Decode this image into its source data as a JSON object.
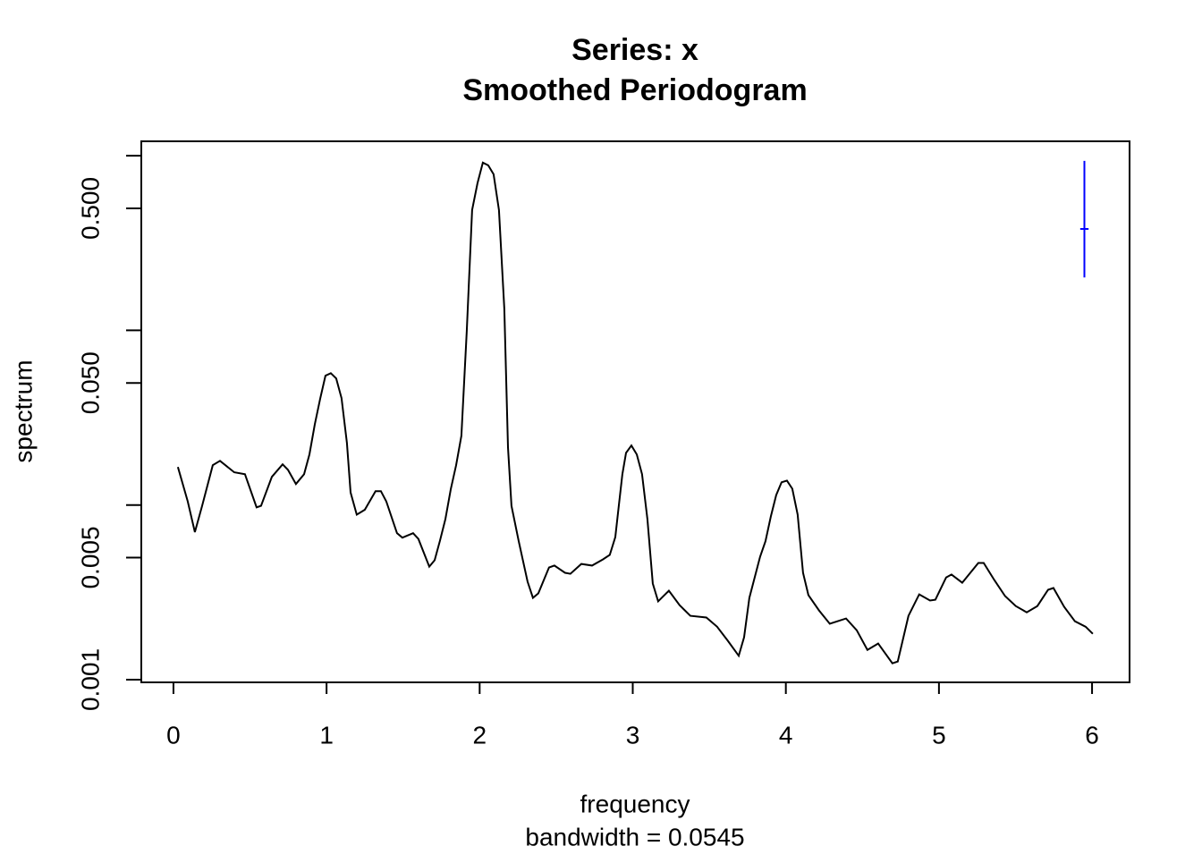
{
  "chart_data": {
    "type": "line",
    "title": "Series: x",
    "subtitle": "Smoothed Periodogram",
    "x_label": "frequency",
    "x_sublabel": "bandwidth = 0.0545",
    "y_label": "spectrum",
    "log_y": true,
    "color": "#000000",
    "xlim": [
      -0.21,
      6.245
    ],
    "xticks": [
      0,
      1,
      2,
      3,
      4,
      5,
      6
    ],
    "ylim": [
      0.000965,
      1.21
    ],
    "yticks": [
      {
        "value": 0.001,
        "label": "0.001"
      },
      0.005,
      {
        "value": 0.05,
        "label": "0.050"
      },
      {
        "value": 0.5,
        "label": "0.500"
      }
    ],
    "yminorticks": [
      0.01,
      0.1,
      1
    ],
    "x": [
      0.029,
      0.093,
      0.14,
      0.187,
      0.257,
      0.304,
      0.397,
      0.467,
      0.543,
      0.572,
      0.643,
      0.713,
      0.748,
      0.8,
      0.853,
      0.888,
      0.923,
      0.958,
      0.993,
      1.028,
      1.063,
      1.098,
      1.133,
      1.157,
      1.197,
      1.25,
      1.32,
      1.355,
      1.39,
      1.46,
      1.495,
      1.565,
      1.6,
      1.671,
      1.706,
      1.741,
      1.776,
      1.811,
      1.846,
      1.881,
      1.916,
      1.951,
      1.986,
      2.021,
      2.056,
      2.091,
      2.126,
      2.161,
      2.185,
      2.208,
      2.255,
      2.313,
      2.348,
      2.383,
      2.453,
      2.488,
      2.558,
      2.593,
      2.664,
      2.734,
      2.804,
      2.85,
      2.886,
      2.909,
      2.932,
      2.956,
      2.991,
      3.026,
      3.061,
      3.096,
      3.131,
      3.166,
      3.236,
      3.306,
      3.376,
      3.481,
      3.551,
      3.621,
      3.692,
      3.727,
      3.762,
      3.832,
      3.867,
      3.902,
      3.937,
      3.972,
      4.007,
      4.042,
      4.077,
      4.112,
      4.147,
      4.217,
      4.287,
      4.393,
      4.463,
      4.533,
      4.603,
      4.696,
      4.731,
      4.801,
      4.871,
      4.942,
      4.977,
      5.047,
      5.082,
      5.152,
      5.257,
      5.292,
      5.362,
      5.432,
      5.502,
      5.573,
      5.643,
      5.713,
      5.748,
      5.818,
      5.888,
      5.958,
      6.005
    ],
    "values": [
      0.0165,
      0.0105,
      0.007,
      0.0099,
      0.0169,
      0.0179,
      0.0154,
      0.015,
      0.0097,
      0.0099,
      0.0145,
      0.0171,
      0.0159,
      0.0132,
      0.015,
      0.0195,
      0.029,
      0.0404,
      0.055,
      0.0569,
      0.0531,
      0.0409,
      0.0227,
      0.0118,
      0.0088,
      0.0094,
      0.012,
      0.012,
      0.0105,
      0.0069,
      0.0065,
      0.0069,
      0.0064,
      0.00444,
      0.00483,
      0.00626,
      0.0083,
      0.0123,
      0.0169,
      0.0249,
      0.099,
      0.489,
      0.696,
      0.914,
      0.881,
      0.783,
      0.489,
      0.133,
      0.0214,
      0.0099,
      0.0062,
      0.00364,
      0.00294,
      0.00312,
      0.00439,
      0.0045,
      0.00409,
      0.00404,
      0.0046,
      0.0045,
      0.00488,
      0.00518,
      0.00656,
      0.0099,
      0.015,
      0.0199,
      0.0219,
      0.0195,
      0.015,
      0.0083,
      0.00355,
      0.00281,
      0.00323,
      0.00267,
      0.00232,
      0.00227,
      0.00201,
      0.00167,
      0.00137,
      0.00175,
      0.00294,
      0.00506,
      0.0062,
      0.0086,
      0.0114,
      0.0135,
      0.0138,
      0.0124,
      0.0088,
      0.00409,
      0.00305,
      0.00249,
      0.00209,
      0.00224,
      0.00192,
      0.00148,
      0.00161,
      0.00124,
      0.00127,
      0.00232,
      0.00308,
      0.00284,
      0.00287,
      0.00385,
      0.004,
      0.00359,
      0.00466,
      0.00466,
      0.00372,
      0.00301,
      0.00264,
      0.00243,
      0.00264,
      0.00327,
      0.00335,
      0.00261,
      0.00216,
      0.00201,
      0.00183
    ],
    "ci_bar": {
      "x": 5.95,
      "y": 0.381,
      "lower": 0.201,
      "upper": 0.935,
      "width": 0.0545,
      "color": "#0000ff"
    }
  }
}
